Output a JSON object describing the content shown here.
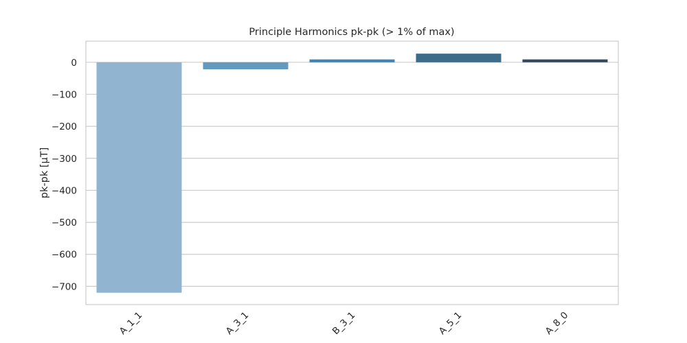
{
  "chart_data": {
    "type": "bar",
    "title": "Principle Harmonics pk-pk (> 1% of max)",
    "xlabel": "",
    "ylabel": "pk-pk [µT]",
    "categories": [
      "A_1_1",
      "A_3_1",
      "B_3_1",
      "A_5_1",
      "A_8_0"
    ],
    "values": [
      -720,
      -22,
      9,
      27,
      9
    ],
    "ylim": [
      -757,
      66
    ],
    "yticks": [
      0,
      -100,
      -200,
      -300,
      -400,
      -500,
      -600,
      -700
    ],
    "ytick_labels": [
      "0",
      "−100",
      "−200",
      "−300",
      "−400",
      "−500",
      "−600",
      "−700"
    ],
    "grid": true,
    "colors": [
      "#91b5d0",
      "#6399bd",
      "#4383b4",
      "#3d6b8a",
      "#34495e"
    ]
  }
}
